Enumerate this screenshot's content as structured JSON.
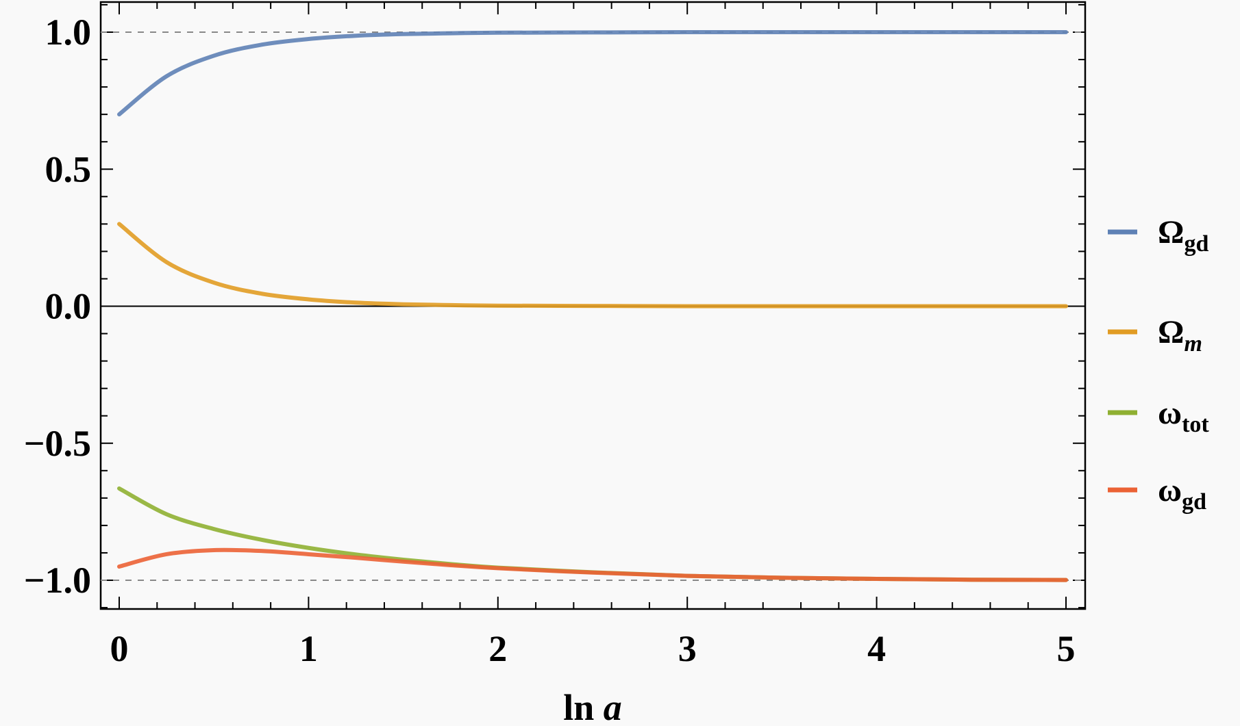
{
  "chart_data": {
    "type": "line",
    "title": "",
    "xlabel": {
      "main": "ln ",
      "italic": "a"
    },
    "ylabel": "",
    "xlim": [
      -0.1,
      5.1
    ],
    "ylim": [
      -1.11,
      1.11
    ],
    "x_ticks": [
      "0",
      "1",
      "2",
      "3",
      "4",
      "5"
    ],
    "y_ticks": [
      "−1.0",
      "−0.5",
      "0.0",
      "0.5",
      "1.0"
    ],
    "x_tick_values": [
      0,
      1,
      2,
      3,
      4,
      5
    ],
    "y_tick_values": [
      -1,
      -0.5,
      0,
      0.5,
      1
    ],
    "grid": false,
    "reference_lines": [
      {
        "y": 1,
        "style": "dashed"
      },
      {
        "y": 0,
        "style": "solid"
      },
      {
        "y": -1,
        "style": "dashed"
      }
    ],
    "legend_placement": "right",
    "x": [
      0,
      0.25,
      0.5,
      0.75,
      1,
      1.25,
      1.5,
      1.75,
      2,
      2.5,
      3,
      3.5,
      4,
      4.5,
      5
    ],
    "series": [
      {
        "name": "Ω",
        "sub": "gd",
        "sub_italic": false,
        "color": "#5E81B5",
        "values": [
          0.7,
          0.839,
          0.914,
          0.954,
          0.975,
          0.987,
          0.993,
          0.996,
          0.998,
          0.999,
          1,
          1,
          1,
          1,
          1
        ]
      },
      {
        "name": "Ω",
        "sub": "m",
        "sub_italic": true,
        "color": "#E19C24",
        "values": [
          0.3,
          0.161,
          0.086,
          0.046,
          0.025,
          0.013,
          0.007,
          0.004,
          0.002,
          0.001,
          0,
          0,
          0,
          0,
          0
        ]
      },
      {
        "name": "ω",
        "sub": "tot",
        "sub_italic": false,
        "color": "#8FB032",
        "values": [
          -0.665,
          -0.759,
          -0.813,
          -0.852,
          -0.882,
          -0.906,
          -0.925,
          -0.941,
          -0.954,
          -0.971,
          -0.984,
          -0.991,
          -0.995,
          -0.998,
          -0.999
        ]
      },
      {
        "name": "ω",
        "sub": "gd",
        "sub_italic": false,
        "color": "#EB6235",
        "values": [
          -0.95,
          -0.905,
          -0.89,
          -0.893,
          -0.905,
          -0.918,
          -0.932,
          -0.945,
          -0.956,
          -0.972,
          -0.984,
          -0.991,
          -0.995,
          -0.998,
          -0.999
        ]
      }
    ]
  }
}
